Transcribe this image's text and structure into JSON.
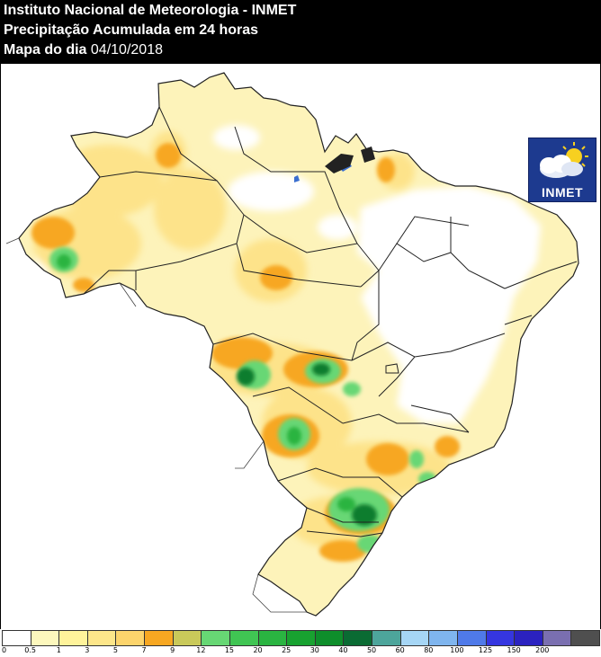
{
  "header": {
    "line1": "Instituto Nacional de Meteorologia - INMET",
    "line2": "Precipitação Acumulada em 24 horas",
    "line3_label": "Mapa do dia",
    "line3_date": "04/10/2018"
  },
  "logo": {
    "text": "INMET",
    "icon": "sun-cloud-icon"
  },
  "legend": {
    "ticks": [
      "0",
      "0.5",
      "1",
      "3",
      "5",
      "7",
      "9",
      "12",
      "15",
      "20",
      "25",
      "30",
      "40",
      "50",
      "60",
      "80",
      "100",
      "125",
      "150",
      "200"
    ],
    "colors": [
      "#ffffff",
      "#fdf8bd",
      "#fff39b",
      "#fde68a",
      "#fcd46c",
      "#f7a722",
      "#c9c95a",
      "#67d774",
      "#40c553",
      "#2ab441",
      "#18a230",
      "#0e8e2b",
      "#0a6b33",
      "#4da59b",
      "#a6d6f5",
      "#7fb5ee",
      "#4f7ae9",
      "#3536e0",
      "#2b22c0",
      "#7a6fb0",
      "#4f4f4f"
    ]
  },
  "map": {
    "colors": {
      "light": "#fdf3ba",
      "yellow": "#fde38a",
      "orange": "#f7a722",
      "lightgreen": "#67d774",
      "green": "#2ab441",
      "darkgreen": "#0c7d2d",
      "border": "#222222",
      "water": "#3b6fd0"
    }
  }
}
